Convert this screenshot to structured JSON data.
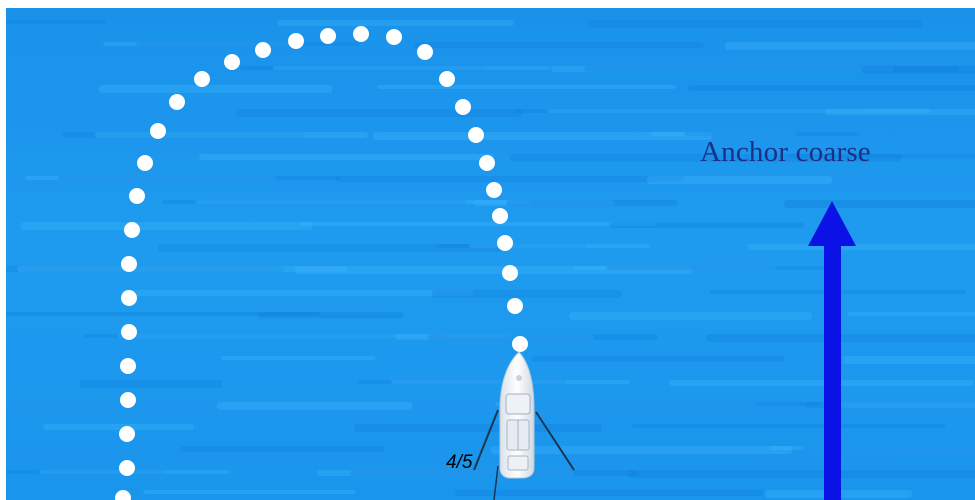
{
  "diagram": {
    "anchor_label": "Anchor coarse",
    "page_counter": "4/5",
    "colors": {
      "water": "#1e9bef",
      "water_light": "#3fb4fb",
      "water_dark": "#0d79db",
      "arrow": "#0a12e6",
      "label": "#1c2f86",
      "path_dots": "#ffffff",
      "boat": "#f4f7fb"
    },
    "icons": {
      "boat": "boat-icon",
      "arrow": "arrow-up-icon"
    }
  }
}
